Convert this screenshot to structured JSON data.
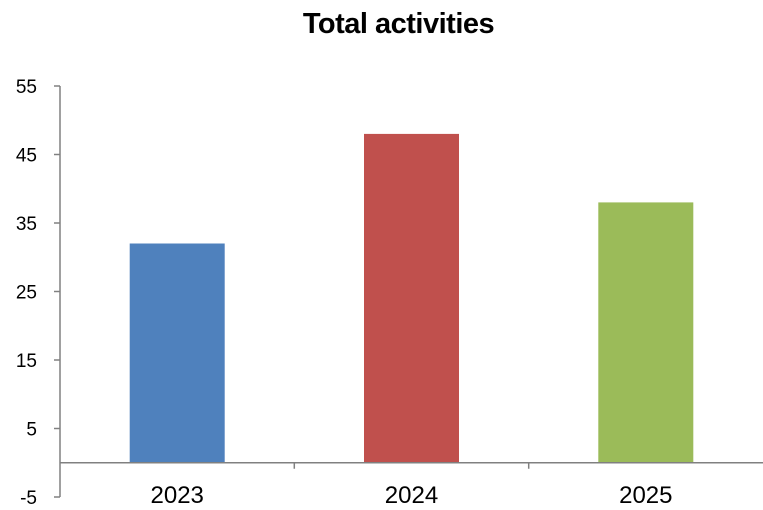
{
  "chart_data": {
    "type": "bar",
    "title": "Total activities",
    "xlabel": "",
    "ylabel": "",
    "categories": [
      "2023",
      "2024",
      "2025"
    ],
    "values": [
      32,
      48,
      38
    ],
    "colors": [
      "#4F81BD",
      "#C0504D",
      "#9BBB59"
    ],
    "y_ticks": [
      -5,
      5,
      15,
      25,
      35,
      45,
      55
    ],
    "ylim": [
      -5,
      55
    ],
    "grid": false,
    "legend": "none"
  }
}
